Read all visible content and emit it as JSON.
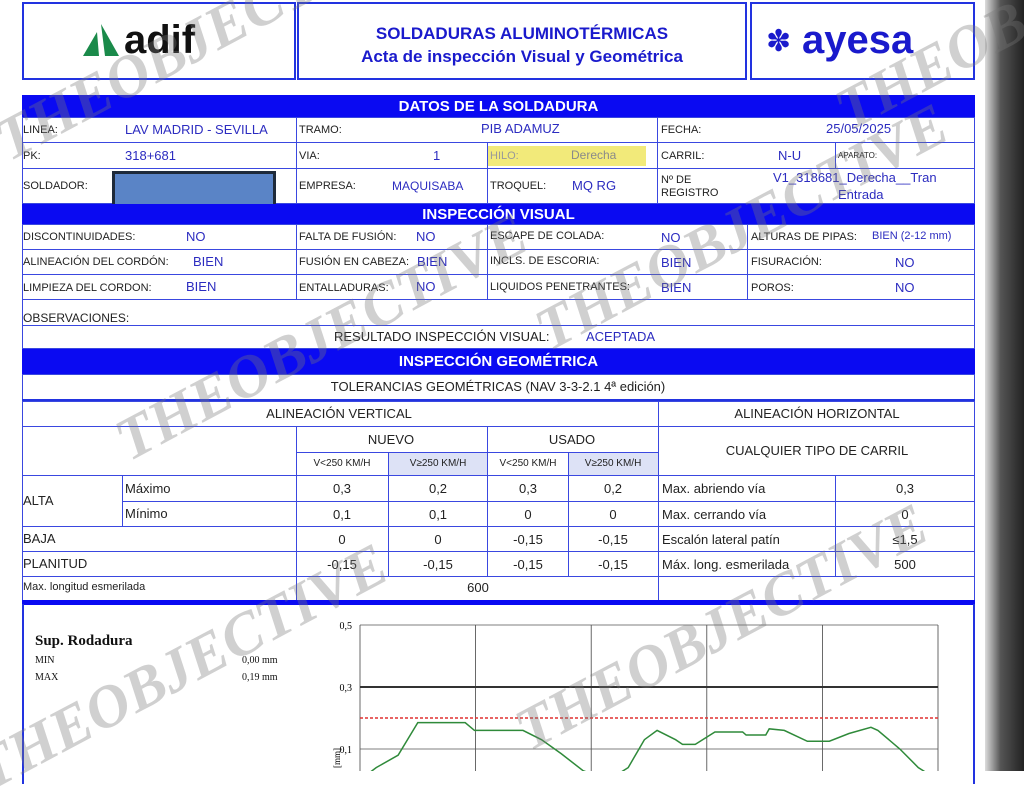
{
  "header": {
    "logo_left": "adif",
    "title": "SOLDADURAS ALUMINOTÉRMICAS",
    "subtitle": "Acta de inspección Visual y Geométrica",
    "logo_right": "ayesa"
  },
  "datos": {
    "title": "DATOS DE LA SOLDADURA",
    "linea_label": "LINEA:",
    "linea": "LAV MADRID - SEVILLA",
    "tramo_label": "TRAMO:",
    "tramo": "PIB ADAMUZ",
    "fecha_label": "FECHA:",
    "fecha": "25/05/2025",
    "pk_label": "PK:",
    "pk": "318+681",
    "via_label": "VIA:",
    "via": "1",
    "hilo_label": "HILO:",
    "hilo": "Derecha",
    "carril_label": "CARRIL:",
    "carril": "N-U",
    "aparato_label": "APARATO:",
    "soldador_label": "SOLDADOR:",
    "empresa_label": "EMPRESA:",
    "empresa": "MAQUISABA",
    "troquel_label": "TROQUEL:",
    "troquel": "MQ RG",
    "registro_label_1": "Nº DE",
    "registro_label_2": "REGISTRO",
    "registro_1": "V1_318681_Derecha__Tran",
    "registro_2": "Entrada"
  },
  "visual": {
    "title": "INSPECCIÓN VISUAL",
    "rows": [
      [
        {
          "label": "DISCONTINUIDADES:",
          "value": "NO"
        },
        {
          "label": "FALTA DE FUSIÓN:",
          "value": "NO"
        },
        {
          "label": "ESCAPE DE COLADA:",
          "value": "NO"
        },
        {
          "label": "ALTURAS DE PIPAS:",
          "value": "BIEN  (2-12 mm)"
        }
      ],
      [
        {
          "label": "ALINEACIÓN DEL CORDÓN:",
          "value": "BIEN"
        },
        {
          "label": "FUSIÓN EN CABEZA:",
          "value": "BIEN"
        },
        {
          "label": "INCLS. DE ESCORIA:",
          "value": "BIEN"
        },
        {
          "label": "FISURACIÓN:",
          "value": "NO"
        }
      ],
      [
        {
          "label": "LIMPIEZA DEL CORDON:",
          "value": "BIEN"
        },
        {
          "label": "ENTALLADURAS:",
          "value": "NO"
        },
        {
          "label": "LIQUIDOS PENETRANTES:",
          "value": "BIEN"
        },
        {
          "label": "POROS:",
          "value": "NO"
        }
      ]
    ],
    "observaciones_label": "OBSERVACIONES:",
    "resultado_label": "RESULTADO INSPECCIÓN VISUAL:",
    "resultado": "ACEPTADA"
  },
  "geometrica": {
    "title": "INSPECCIÓN GEOMÉTRICA",
    "tolerancias": "TOLERANCIAS GEOMÉTRICAS (NAV 3-3-2.1 4ª edición)",
    "vertical": "ALINEACIÓN VERTICAL",
    "horizontal": "ALINEACIÓN HORIZONTAL",
    "nuevo": "NUEVO",
    "usado": "USADO",
    "cualquier": "CUALQUIER TIPO DE CARRIL",
    "speeds": [
      "V<250 KM/H",
      "V≥250 KM/H",
      "V<250 KM/H",
      "V≥250 KM/H"
    ],
    "alta": "ALTA",
    "maximo": "Máximo",
    "minimo": "Mínimo",
    "baja": "BAJA",
    "planitud": "PLANITUD",
    "rows": [
      {
        "values": [
          "0,3",
          "0,2",
          "0,3",
          "0,2"
        ],
        "h_label": "Max. abriendo vía",
        "h_value": "0,3"
      },
      {
        "values": [
          "0,1",
          "0,1",
          "0",
          "0"
        ],
        "h_label": "Max. cerrando vía",
        "h_value": "0"
      },
      {
        "values": [
          "0",
          "0",
          "-0,15",
          "-0,15"
        ],
        "h_label": "Escalón lateral patín",
        "h_value": "≤1,5"
      },
      {
        "values": [
          "-0,15",
          "-0,15",
          "-0,15",
          "-0,15"
        ],
        "h_label": "Máx. long. esmerilada",
        "h_value": "500"
      }
    ],
    "max_long_label": "Max. longitud esmerilada",
    "max_long": "600"
  },
  "chart_data": {
    "type": "line",
    "title": "Sup. Rodadura",
    "min_label": "MIN",
    "min": "0,00 mm",
    "max_label": "MAX",
    "max": "0,19 mm",
    "ylabel": "[mm]",
    "yticks": [
      "0,5",
      "0,3",
      "0,1"
    ],
    "ylim": [
      0,
      0.5
    ],
    "xlim": [
      0,
      5
    ],
    "grid": true,
    "limit_line": 0.3,
    "reference_dashed": 0.2,
    "colors": {
      "profile": "#2f8a3a",
      "limit": "#333333",
      "reference": "#e03030"
    },
    "profile": {
      "x": [
        0,
        0.14,
        0.33,
        0.5,
        0.91,
        0.99,
        1.41,
        1.57,
        1.74,
        1.93,
        2.15,
        2.32,
        2.46,
        2.57,
        2.73,
        2.79,
        2.9,
        3.07,
        3.31,
        3.34,
        3.51,
        3.54,
        3.67,
        3.87,
        4.06,
        4.23,
        4.42,
        4.48,
        4.67,
        4.83,
        5
      ],
      "y": [
        0,
        0.04,
        0.08,
        0.185,
        0.185,
        0.16,
        0.16,
        0.13,
        0.085,
        0.03,
        0,
        0.04,
        0.13,
        0.16,
        0.13,
        0.115,
        0.115,
        0.155,
        0.155,
        0.145,
        0.145,
        0.165,
        0.16,
        0.125,
        0.125,
        0.15,
        0.17,
        0.16,
        0.1,
        0.04,
        0
      ]
    }
  },
  "watermark": "THEOBJECTIVE"
}
